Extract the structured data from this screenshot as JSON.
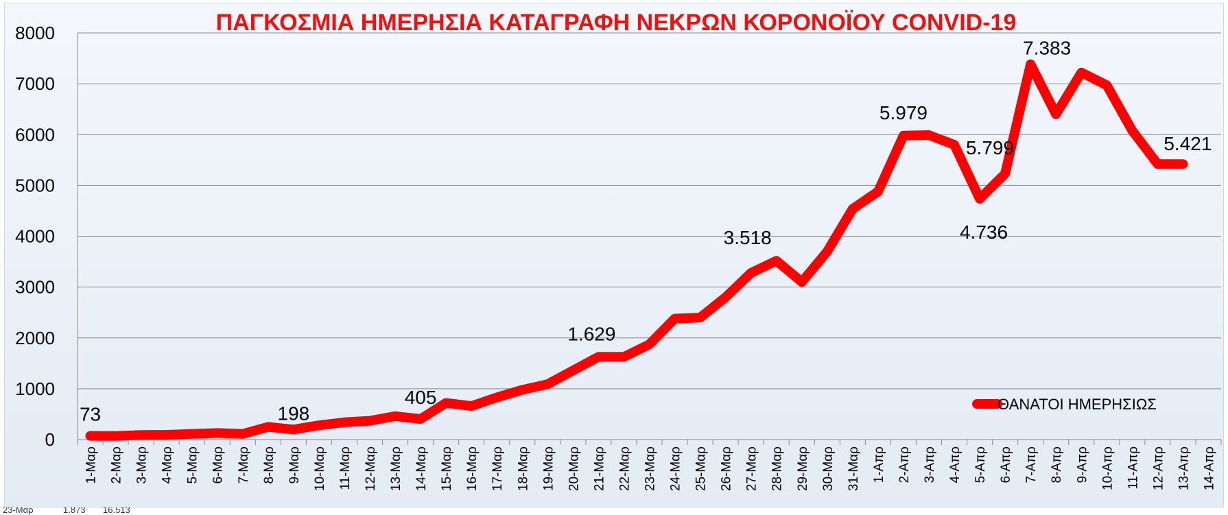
{
  "sheet_row": {
    "date": "23-Μαρ",
    "value_a": "1.873",
    "value_b": "16.513"
  },
  "chart_data": {
    "type": "line",
    "title": "ΠΑΓΚΟΣΜΙΑ ΗΜΕΡΗΣΙΑ ΚΑΤΑΓΡΑΦΗ ΝΕΚΡΩΝ ΚΟΡΟΝΟΪΟΥ CONVID-19",
    "xlabel": "",
    "ylabel": "",
    "ylim": [
      0,
      8000
    ],
    "yticks": [
      "0",
      "1000",
      "2000",
      "3000",
      "4000",
      "5000",
      "6000",
      "7000",
      "8000"
    ],
    "grid": true,
    "legend_position": "lower-right",
    "line_color": "#ff0000",
    "title_color": "#f40f0f",
    "categories": [
      "1-Μαρ",
      "2-Μαρ",
      "3-Μαρ",
      "4-Μαρ",
      "5-Μαρ",
      "6-Μαρ",
      "7-Μαρ",
      "8-Μαρ",
      "9-Μαρ",
      "10-Μαρ",
      "11-Μαρ",
      "12-Μαρ",
      "13-Μαρ",
      "14-Μαρ",
      "15-Μαρ",
      "16-Μαρ",
      "17-Μαρ",
      "18-Μαρ",
      "19-Μαρ",
      "20-Μαρ",
      "21-Μαρ",
      "22-Μαρ",
      "23-Μαρ",
      "24-Μαρ",
      "25-Μαρ",
      "26-Μαρ",
      "27-Μαρ",
      "28-Μαρ",
      "29-Μαρ",
      "30-Μαρ",
      "31-Μαρ",
      "1-Απρ",
      "2-Απρ",
      "3-Απρ",
      "4-Απρ",
      "5-Απρ",
      "6-Απρ",
      "7-Απρ",
      "8-Απρ",
      "9-Απρ",
      "10-Απρ",
      "11-Απρ",
      "12-Απρ",
      "13-Απρ",
      "14-Απρ"
    ],
    "series": [
      {
        "name": "ΘΑΝΑΤΟΙ ΗΜΕΡΗΣΙΩΣ",
        "values": [
          73,
          70,
          90,
          95,
          110,
          130,
          110,
          250,
          198,
          280,
          340,
          370,
          460,
          405,
          720,
          660,
          830,
          980,
          1090,
          1360,
          1629,
          1629,
          1873,
          2380,
          2400,
          2800,
          3280,
          3518,
          3100,
          3700,
          4540,
          4880,
          5979,
          5990,
          5799,
          4736,
          5230,
          7383,
          6400,
          7220,
          6970,
          6080,
          5421,
          5421,
          null
        ]
      }
    ],
    "data_labels": [
      {
        "index": 0,
        "text": "73"
      },
      {
        "index": 8,
        "text": "198"
      },
      {
        "index": 13,
        "text": "405"
      },
      {
        "index": 20,
        "text": "1.629"
      },
      {
        "index": 27,
        "text": "3.518"
      },
      {
        "index": 32,
        "text": "5.979"
      },
      {
        "index": 34,
        "text": "5.799"
      },
      {
        "index": 35,
        "text": "4.736"
      },
      {
        "index": 37,
        "text": "7.383"
      },
      {
        "index": 42,
        "text": "5.421"
      }
    ]
  }
}
